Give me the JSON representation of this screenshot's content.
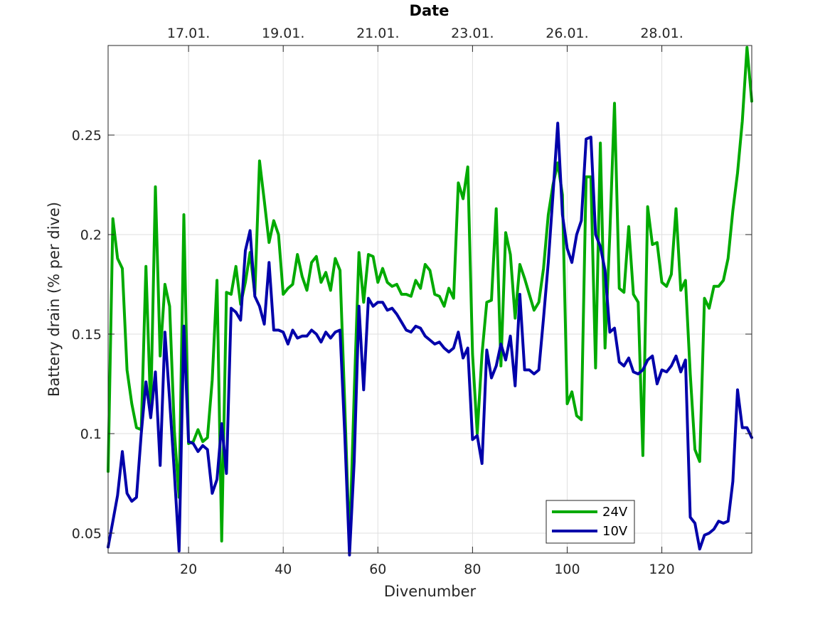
{
  "chart_data": {
    "type": "line",
    "xlabel": "Divenumber",
    "ylabel": "Battery drain (% per dive)",
    "top_axis_label": "Date",
    "xlim": [
      3,
      139
    ],
    "ylim": [
      0.04,
      0.295
    ],
    "x_ticks": [
      20,
      40,
      60,
      80,
      100,
      120
    ],
    "y_ticks": [
      0.05,
      0.1,
      0.15,
      0.2,
      0.25
    ],
    "x_tick_labels": [
      "20",
      "40",
      "60",
      "80",
      "100",
      "120"
    ],
    "y_tick_labels": [
      "0.05",
      "0.1",
      "0.15",
      "0.2",
      "0.25"
    ],
    "top_ticks": [
      {
        "dive": 20,
        "label": "17.01."
      },
      {
        "dive": 40,
        "label": "19.01."
      },
      {
        "dive": 60,
        "label": "21.01."
      },
      {
        "dive": 80,
        "label": "23.01."
      },
      {
        "dive": 100,
        "label": "26.01."
      },
      {
        "dive": 120,
        "label": "28.01."
      }
    ],
    "grid": true,
    "legend_position": "bottom-right",
    "series": [
      {
        "name": "24V",
        "color": "#00aa00",
        "x": [
          3,
          4,
          5,
          6,
          7,
          8,
          9,
          10,
          11,
          12,
          13,
          14,
          15,
          16,
          17,
          18,
          19,
          20,
          21,
          22,
          23,
          24,
          25,
          26,
          27,
          28,
          29,
          30,
          31,
          32,
          33,
          34,
          35,
          36,
          37,
          38,
          39,
          40,
          41,
          42,
          43,
          44,
          45,
          46,
          47,
          48,
          49,
          50,
          51,
          52,
          53,
          54,
          55,
          56,
          57,
          58,
          59,
          60,
          61,
          62,
          63,
          64,
          65,
          66,
          67,
          68,
          69,
          70,
          71,
          72,
          73,
          74,
          75,
          76,
          77,
          78,
          79,
          80,
          81,
          82,
          83,
          84,
          85,
          86,
          87,
          88,
          89,
          90,
          91,
          92,
          93,
          94,
          95,
          96,
          97,
          98,
          99,
          100,
          101,
          102,
          103,
          104,
          105,
          106,
          107,
          108,
          109,
          110,
          111,
          112,
          113,
          114,
          115,
          116,
          117,
          118,
          119,
          120,
          121,
          122,
          123,
          124,
          125,
          126,
          127,
          128,
          129,
          130,
          131,
          132,
          133,
          134,
          135,
          136,
          137,
          138,
          139
        ],
        "y": [
          0.081,
          0.208,
          0.188,
          0.183,
          0.132,
          0.115,
          0.103,
          0.102,
          0.184,
          0.111,
          0.224,
          0.139,
          0.175,
          0.164,
          0.101,
          0.068,
          0.21,
          0.095,
          0.096,
          0.102,
          0.096,
          0.098,
          0.127,
          0.177,
          0.046,
          0.171,
          0.17,
          0.184,
          0.165,
          0.176,
          0.191,
          0.17,
          0.237,
          0.217,
          0.196,
          0.207,
          0.2,
          0.17,
          0.173,
          0.175,
          0.19,
          0.179,
          0.172,
          0.186,
          0.189,
          0.176,
          0.181,
          0.172,
          0.188,
          0.182,
          0.115,
          0.043,
          0.12,
          0.191,
          0.166,
          0.19,
          0.189,
          0.176,
          0.183,
          0.176,
          0.174,
          0.175,
          0.17,
          0.17,
          0.169,
          0.177,
          0.173,
          0.185,
          0.182,
          0.17,
          0.169,
          0.164,
          0.173,
          0.168,
          0.226,
          0.218,
          0.234,
          0.14,
          0.1,
          0.14,
          0.166,
          0.167,
          0.213,
          0.134,
          0.201,
          0.19,
          0.158,
          0.185,
          0.178,
          0.17,
          0.162,
          0.166,
          0.183,
          0.21,
          0.225,
          0.236,
          0.22,
          0.115,
          0.121,
          0.109,
          0.107,
          0.229,
          0.229,
          0.133,
          0.246,
          0.143,
          0.2,
          0.266,
          0.173,
          0.171,
          0.204,
          0.17,
          0.166,
          0.089,
          0.214,
          0.195,
          0.196,
          0.176,
          0.174,
          0.18,
          0.213,
          0.172,
          0.177,
          0.13,
          0.092,
          0.086,
          0.168,
          0.163,
          0.174,
          0.174,
          0.177,
          0.188,
          0.212,
          0.231,
          0.257,
          0.294,
          0.267
        ]
      },
      {
        "name": "10V",
        "color": "#0000aa",
        "x": [
          3,
          4,
          5,
          6,
          7,
          8,
          9,
          10,
          11,
          12,
          13,
          14,
          15,
          16,
          17,
          18,
          19,
          20,
          21,
          22,
          23,
          24,
          25,
          26,
          27,
          28,
          29,
          30,
          31,
          32,
          33,
          34,
          35,
          36,
          37,
          38,
          39,
          40,
          41,
          42,
          43,
          44,
          45,
          46,
          47,
          48,
          49,
          50,
          51,
          52,
          53,
          54,
          55,
          56,
          57,
          58,
          59,
          60,
          61,
          62,
          63,
          64,
          65,
          66,
          67,
          68,
          69,
          70,
          71,
          72,
          73,
          74,
          75,
          76,
          77,
          78,
          79,
          80,
          81,
          82,
          83,
          84,
          85,
          86,
          87,
          88,
          89,
          90,
          91,
          92,
          93,
          94,
          95,
          96,
          97,
          98,
          99,
          100,
          101,
          102,
          103,
          104,
          105,
          106,
          107,
          108,
          109,
          110,
          111,
          112,
          113,
          114,
          115,
          116,
          117,
          118,
          119,
          120,
          121,
          122,
          123,
          124,
          125,
          126,
          127,
          128,
          129,
          130,
          131,
          132,
          133,
          134,
          135,
          136,
          137,
          138,
          139
        ],
        "y": [
          0.043,
          0.056,
          0.069,
          0.091,
          0.07,
          0.066,
          0.068,
          0.1,
          0.126,
          0.108,
          0.131,
          0.084,
          0.151,
          0.117,
          0.08,
          0.041,
          0.154,
          0.096,
          0.095,
          0.091,
          0.094,
          0.092,
          0.07,
          0.077,
          0.105,
          0.08,
          0.163,
          0.161,
          0.157,
          0.192,
          0.202,
          0.169,
          0.164,
          0.155,
          0.186,
          0.152,
          0.152,
          0.151,
          0.145,
          0.152,
          0.148,
          0.149,
          0.149,
          0.152,
          0.15,
          0.146,
          0.151,
          0.148,
          0.151,
          0.152,
          0.1,
          0.039,
          0.086,
          0.164,
          0.122,
          0.168,
          0.164,
          0.166,
          0.166,
          0.162,
          0.163,
          0.16,
          0.156,
          0.152,
          0.151,
          0.154,
          0.153,
          0.149,
          0.147,
          0.145,
          0.146,
          0.143,
          0.141,
          0.143,
          0.151,
          0.138,
          0.143,
          0.097,
          0.099,
          0.085,
          0.142,
          0.128,
          0.134,
          0.145,
          0.137,
          0.149,
          0.124,
          0.17,
          0.132,
          0.132,
          0.13,
          0.132,
          0.158,
          0.186,
          0.22,
          0.256,
          0.21,
          0.193,
          0.186,
          0.2,
          0.207,
          0.248,
          0.249,
          0.2,
          0.194,
          0.182,
          0.151,
          0.153,
          0.136,
          0.134,
          0.138,
          0.131,
          0.13,
          0.132,
          0.137,
          0.139,
          0.125,
          0.132,
          0.131,
          0.134,
          0.139,
          0.131,
          0.137,
          0.058,
          0.055,
          0.042,
          0.049,
          0.05,
          0.052,
          0.056,
          0.055,
          0.056,
          0.076,
          0.122,
          0.103,
          0.103,
          0.098
        ]
      }
    ]
  }
}
